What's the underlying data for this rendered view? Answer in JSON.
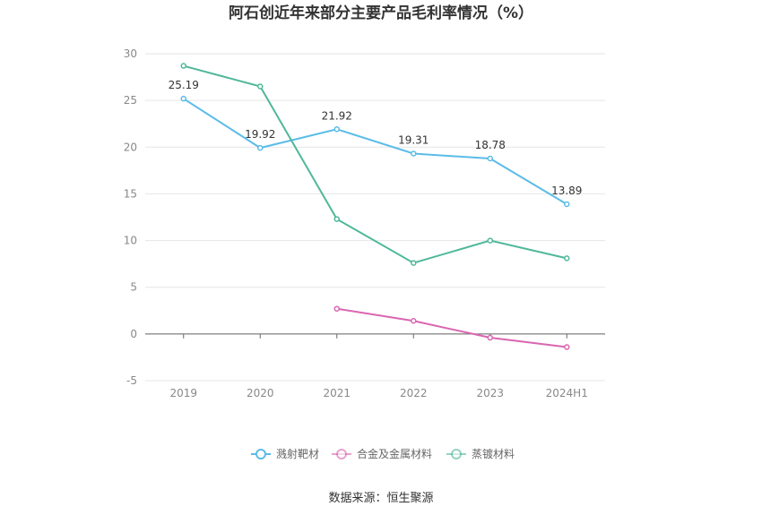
{
  "chart_data": {
    "type": "line",
    "title": "阿石创近年来部分主要产品毛利率情况（%）",
    "categories": [
      "2019",
      "2020",
      "2021",
      "2022",
      "2023",
      "2024H1"
    ],
    "ylim": [
      -5,
      30
    ],
    "yticks": [
      -5,
      0,
      5,
      10,
      15,
      20,
      25,
      30
    ],
    "grid": true,
    "legend_position": "bottom",
    "series": [
      {
        "name": "溅射靶材",
        "color": "#5bbce8",
        "values": [
          25.19,
          19.92,
          21.92,
          19.31,
          18.78,
          13.89
        ],
        "labels": [
          "25.19",
          "19.92",
          "21.92",
          "19.31",
          "18.78",
          "13.89"
        ]
      },
      {
        "name": "合金及金属材料",
        "color": "#d966b0",
        "values": [
          null,
          null,
          2.7,
          1.4,
          -0.4,
          -1.4
        ]
      },
      {
        "name": "蒸镀材料",
        "color": "#4fb89a",
        "values": [
          28.7,
          26.5,
          12.3,
          7.6,
          10.0,
          8.1
        ]
      }
    ],
    "source": "数据来源：恒生聚源"
  }
}
